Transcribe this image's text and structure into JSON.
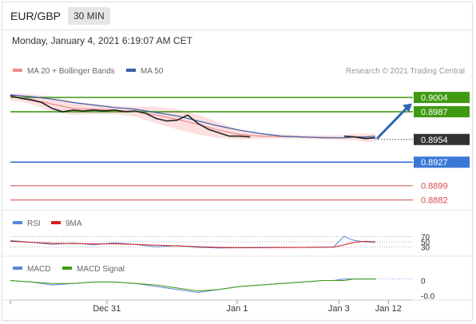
{
  "header": {
    "pair": "EUR/GBP",
    "timeframe": "30 MIN"
  },
  "datetime": "Monday, January 4, 2021 6:19:07 AM CET",
  "colors": {
    "bollinger": "#f08a8a",
    "bollinger_fill": "#fbd5d5",
    "ma50": "#3a5fa8",
    "price": "#222222",
    "resistance": "#3f9a12",
    "support": "#3a78d8",
    "red_level": "#d94a4a",
    "current": "#333333",
    "rsi": "#5b84d6",
    "rsi_ma": "#d42020",
    "macd": "#5b84d6",
    "macd_signal": "#3f9a12",
    "arrow": "#2e67b0"
  },
  "chart_data": [
    {
      "type": "line",
      "panel": "price",
      "legend": [
        "MA 20 + Bollinger Bands",
        "MA 50"
      ],
      "copyright": "Research © 2021 Trading Central",
      "x_ticks": [
        "Dec 31",
        "Jan 1",
        "Jan 3",
        "Jan 12"
      ],
      "ylim": [
        0.8875,
        0.9025
      ],
      "series": [
        {
          "name": "Price",
          "x": [
            0,
            2,
            4,
            6,
            8,
            10,
            12,
            14,
            16,
            18,
            20,
            22,
            24,
            26,
            28,
            30,
            32,
            34,
            36,
            38,
            40,
            42,
            44,
            46,
            48,
            50,
            52,
            54,
            56,
            58,
            60,
            62,
            64,
            66,
            68,
            70
          ],
          "values": [
            0.9006,
            0.9003,
            0.9001,
            0.8998,
            0.8991,
            0.8987,
            0.8989,
            0.8988,
            0.8989,
            0.8988,
            0.8989,
            0.8987,
            0.8988,
            0.8985,
            0.8979,
            0.8976,
            0.8977,
            0.8983,
            0.8973,
            0.8966,
            0.8962,
            0.8958,
            0.8958,
            0.8957,
            null,
            null,
            null,
            null,
            null,
            null,
            null,
            null,
            0.8958,
            0.8957,
            0.8955,
            0.8956
          ]
        },
        {
          "name": "MA 20",
          "x": [
            0,
            4,
            8,
            12,
            16,
            20,
            24,
            28,
            32,
            36,
            40,
            44,
            48,
            56,
            64,
            66,
            68,
            70
          ],
          "values": [
            0.9005,
            0.9002,
            0.8996,
            0.8991,
            0.899,
            0.8989,
            0.8987,
            0.8983,
            0.8978,
            0.8972,
            0.8965,
            0.896,
            0.8958,
            0.8957,
            0.8956,
            0.8957,
            0.8956,
            0.8956
          ]
        },
        {
          "name": "MA 50",
          "x": [
            0,
            4,
            8,
            12,
            16,
            20,
            24,
            28,
            32,
            36,
            40,
            44,
            48,
            52,
            56,
            60,
            64,
            66,
            68,
            70
          ],
          "values": [
            0.9007,
            0.9005,
            0.9002,
            0.8998,
            0.8995,
            0.8992,
            0.899,
            0.8986,
            0.8982,
            0.8976,
            0.897,
            0.8965,
            0.8961,
            0.8958,
            0.8957,
            0.8956,
            0.8956,
            0.8957,
            0.8957,
            0.8958
          ]
        }
      ],
      "levels": [
        {
          "value": 0.9004,
          "label": "0.9004",
          "kind": "resistance"
        },
        {
          "value": 0.8987,
          "label": "0.8987",
          "kind": "resistance"
        },
        {
          "value": 0.8954,
          "label": "0.8954",
          "kind": "current"
        },
        {
          "value": 0.8927,
          "label": "0.8927",
          "kind": "support"
        },
        {
          "value": 0.8899,
          "label": "0.8899",
          "kind": "red"
        },
        {
          "value": 0.8882,
          "label": "0.8882",
          "kind": "red"
        }
      ]
    },
    {
      "type": "line",
      "panel": "rsi",
      "legend": [
        "RSI",
        "9MA"
      ],
      "y_ticks": [
        {
          "value": 70,
          "label": "70"
        },
        {
          "value": 50,
          "label": "50"
        },
        {
          "value": 30,
          "label": "30"
        }
      ],
      "ylim": [
        0,
        100
      ],
      "series": [
        {
          "name": "RSI",
          "x": [
            0,
            4,
            8,
            12,
            16,
            20,
            24,
            28,
            32,
            36,
            40,
            44,
            48,
            56,
            62,
            64,
            65,
            66,
            68,
            70
          ],
          "values": [
            55,
            48,
            40,
            45,
            38,
            46,
            40,
            30,
            35,
            28,
            26,
            27,
            28,
            28,
            30,
            72,
            62,
            55,
            50,
            48
          ]
        },
        {
          "name": "9MA",
          "x": [
            0,
            4,
            8,
            12,
            16,
            20,
            24,
            28,
            32,
            36,
            40,
            44,
            48,
            56,
            62,
            64,
            66,
            68,
            70
          ],
          "values": [
            52,
            48,
            44,
            43,
            42,
            42,
            40,
            37,
            34,
            31,
            28,
            27,
            27,
            28,
            29,
            38,
            48,
            52,
            50
          ]
        }
      ]
    },
    {
      "type": "line",
      "panel": "macd",
      "legend": [
        "MACD",
        "MACD Signal"
      ],
      "y_ticks": [
        {
          "value": 0,
          "label": "0"
        },
        {
          "value": -0.001,
          "label": "-0.0"
        }
      ],
      "ylim": [
        -0.0012,
        0.0004
      ],
      "series": [
        {
          "name": "MACD",
          "x": [
            0,
            4,
            8,
            12,
            16,
            20,
            24,
            28,
            32,
            36,
            40,
            44,
            48,
            52,
            56,
            60,
            62,
            64,
            66,
            68,
            70
          ],
          "values": [
            0.0,
            -0.0001,
            -0.0003,
            -0.0002,
            -0.0001,
            -0.0001,
            -0.0002,
            -0.0004,
            -0.0006,
            -0.0008,
            -0.0006,
            -0.0004,
            -0.0003,
            -0.0002,
            -0.0001,
            0.0,
            0.0,
            0.0001,
            0.0001,
            0.0001,
            0.0001
          ]
        },
        {
          "name": "MACD Signal",
          "x": [
            0,
            4,
            8,
            12,
            16,
            20,
            24,
            28,
            32,
            36,
            40,
            44,
            48,
            52,
            56,
            60,
            62,
            64,
            66,
            68,
            70
          ],
          "values": [
            0.0,
            -0.0001,
            -0.0002,
            -0.0002,
            -0.0001,
            -0.0001,
            -0.0002,
            -0.0003,
            -0.0005,
            -0.0007,
            -0.0006,
            -0.0004,
            -0.0003,
            -0.0002,
            -0.0001,
            0.0,
            0.0,
            0.0,
            0.0001,
            0.0001,
            0.0001
          ]
        }
      ]
    }
  ]
}
